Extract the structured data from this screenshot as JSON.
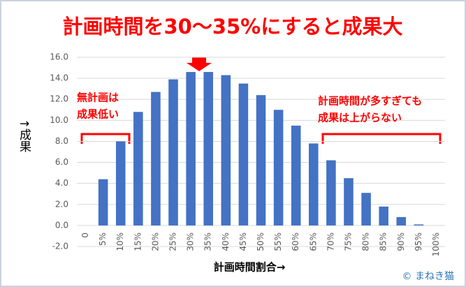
{
  "chart_data": {
    "type": "bar",
    "title": "計画時間を30〜35%にすると成果大",
    "y_label": "↑成果",
    "x_label": "計画時間割合→",
    "annotations": [
      [
        "無計画は",
        "成果低い"
      ],
      [
        "計画時間が多すぎても",
        "成果は上がらない"
      ]
    ],
    "credit": "© まねき猫",
    "categories": [
      "0",
      "5%",
      "10%",
      "15%",
      "20%",
      "25%",
      "30%",
      "35%",
      "40%",
      "45%",
      "50%",
      "55%",
      "60%",
      "65%",
      "70%",
      "75%",
      "80%",
      "85%",
      "90%",
      "95%",
      "100%"
    ],
    "values": [
      0,
      4.4,
      8.0,
      10.8,
      12.7,
      13.9,
      14.6,
      14.6,
      14.3,
      13.5,
      12.4,
      11.0,
      9.5,
      7.8,
      6.2,
      4.5,
      3.1,
      1.8,
      0.8,
      0.1,
      0
    ],
    "color": "#4472c4",
    "ylim": [
      -2,
      16
    ],
    "yticks": [
      {
        "value": -2,
        "label": "-2.0"
      },
      {
        "value": 0,
        "label": "0.0"
      },
      {
        "value": 2,
        "label": "2.0"
      },
      {
        "value": 4,
        "label": "4.0"
      },
      {
        "value": 6,
        "label": "6.0"
      },
      {
        "value": 8,
        "label": "8.0"
      },
      {
        "value": 10,
        "label": "10.0"
      },
      {
        "value": 12,
        "label": "12.0"
      },
      {
        "value": 14,
        "label": "14.0"
      },
      {
        "value": 16,
        "label": "16.0"
      }
    ],
    "grid": true
  }
}
